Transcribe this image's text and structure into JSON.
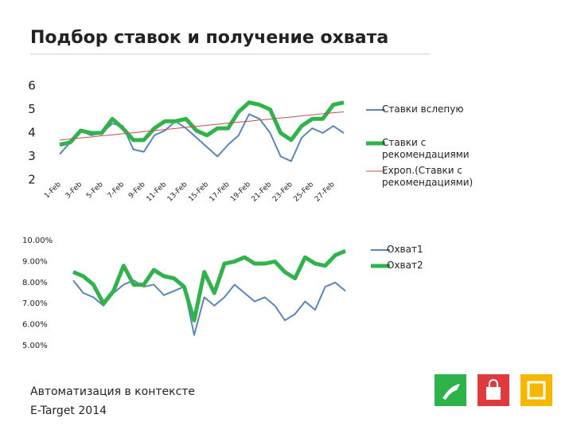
{
  "title": "Подбор ставок и получение охвата",
  "footer": {
    "line1": "Автоматизация в контексте",
    "line2": "E-Target 2014"
  },
  "chart_data": [
    {
      "type": "line",
      "categories": [
        "1-Feb",
        null,
        "3-Feb",
        null,
        "5-Feb",
        null,
        "7-Feb",
        null,
        "9-Feb",
        null,
        "11-Feb",
        null,
        "13-Feb",
        null,
        "15-Feb",
        null,
        "17-Feb",
        null,
        "19-Feb",
        null,
        "21-Feb",
        null,
        "23-Feb",
        null,
        "25-Feb",
        null,
        "27-Feb",
        null
      ],
      "ylim": [
        2,
        6
      ],
      "yticks": [
        2,
        3,
        4,
        5,
        6
      ],
      "grid": false,
      "series": [
        {
          "name": "Ставки вслепую",
          "color": "#5a86b8",
          "width": 2,
          "values": [
            3.1,
            3.6,
            4.1,
            3.9,
            4.0,
            4.4,
            4.3,
            3.3,
            3.2,
            3.9,
            4.1,
            4.5,
            4.2,
            3.8,
            3.4,
            3.0,
            3.5,
            3.9,
            4.8,
            4.6,
            4.0,
            3.0,
            2.8,
            3.8,
            4.2,
            4.0,
            4.3,
            4.0
          ]
        },
        {
          "name": "Ставки с рекомендациями",
          "color": "#2fb34a",
          "width": 5,
          "values": [
            3.5,
            3.6,
            4.1,
            4.0,
            4.0,
            4.6,
            4.2,
            3.7,
            3.7,
            4.2,
            4.5,
            4.5,
            4.6,
            4.1,
            3.9,
            4.2,
            4.2,
            4.9,
            5.3,
            5.2,
            5.0,
            4.0,
            3.7,
            4.3,
            4.6,
            4.6,
            5.2,
            5.3
          ]
        },
        {
          "name": "Expon.(Ставки с рекомендациями)",
          "color": "#c0504d",
          "width": 1,
          "values": [
            3.7,
            3.74,
            3.79,
            3.83,
            3.88,
            3.92,
            3.97,
            4.01,
            4.06,
            4.1,
            4.15,
            4.19,
            4.24,
            4.28,
            4.33,
            4.37,
            4.42,
            4.46,
            4.5,
            4.55,
            4.59,
            4.64,
            4.68,
            4.73,
            4.77,
            4.82,
            4.86,
            4.9
          ]
        }
      ]
    },
    {
      "type": "line",
      "ylim": [
        5,
        10
      ],
      "yticks": [
        {
          "value": 5,
          "label": "5.00%"
        },
        {
          "value": 6,
          "label": "6.00%"
        },
        {
          "value": 7,
          "label": "7.00%"
        },
        {
          "value": 8,
          "label": "8.00%"
        },
        {
          "value": 9,
          "label": "9.00%"
        },
        {
          "value": 10,
          "label": "10.00%"
        }
      ],
      "grid": false,
      "series": [
        {
          "name": "Охват1",
          "color": "#5a86b8",
          "width": 2,
          "values": [
            8.1,
            7.5,
            7.3,
            6.9,
            7.5,
            7.9,
            8.1,
            7.8,
            7.9,
            7.4,
            7.6,
            7.8,
            5.5,
            7.3,
            6.9,
            7.3,
            7.9,
            7.5,
            7.1,
            7.3,
            6.9,
            6.2,
            6.5,
            7.1,
            6.7,
            7.8,
            8.0,
            7.6
          ]
        },
        {
          "name": "Охват2",
          "color": "#2fb34a",
          "width": 5,
          "values": [
            8.5,
            8.3,
            7.9,
            7.0,
            7.6,
            8.8,
            7.9,
            7.9,
            8.6,
            8.3,
            8.2,
            7.8,
            6.2,
            8.5,
            7.5,
            8.9,
            9.0,
            9.2,
            8.9,
            8.9,
            9.0,
            8.5,
            8.2,
            9.2,
            8.9,
            8.8,
            9.3,
            9.5
          ]
        }
      ]
    }
  ]
}
